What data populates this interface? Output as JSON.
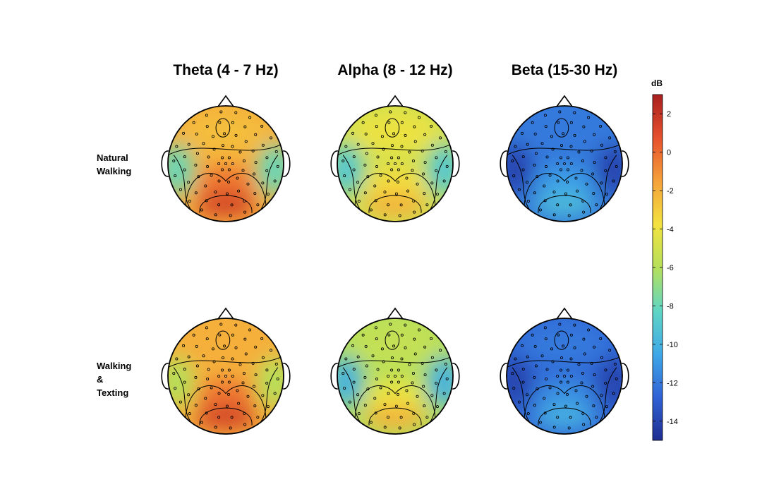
{
  "chart_data": {
    "type": "heatmap",
    "description_kind": "EEG scalp topography maps",
    "columns": [
      "Theta (4 - 7 Hz)",
      "Alpha (8 - 12 Hz)",
      "Beta (15-30 Hz)"
    ],
    "rows": [
      {
        "label_lines": [
          "Natural",
          "Walking"
        ]
      },
      {
        "label_lines": [
          "Walking",
          "&",
          "Texting"
        ]
      }
    ],
    "colorbar": {
      "unit": "dB",
      "range": [
        -15,
        3
      ],
      "ticks": [
        2,
        0,
        -2,
        -4,
        -6,
        -8,
        -10,
        -12,
        -14
      ],
      "colormap": "jet",
      "colors": [
        "#1f2d8f",
        "#2f62d6",
        "#3fa8e8",
        "#5fd6c4",
        "#b6e05a",
        "#f3e240",
        "#f5a13a",
        "#e6502c",
        "#a8201f"
      ]
    },
    "maps": [
      {
        "row": 0,
        "col": 0,
        "approx_mean_db": -2,
        "posterior_db": 1.5,
        "frontal_db": -2.5,
        "temporal_db": -8
      },
      {
        "row": 0,
        "col": 1,
        "approx_mean_db": -5,
        "posterior_db": -2,
        "frontal_db": -4,
        "temporal_db": -9
      },
      {
        "row": 0,
        "col": 2,
        "approx_mean_db": -12,
        "posterior_db": -9.5,
        "frontal_db": -12,
        "temporal_db": -14
      },
      {
        "row": 1,
        "col": 0,
        "approx_mean_db": -2,
        "posterior_db": 1.5,
        "frontal_db": -2,
        "temporal_db": -6
      },
      {
        "row": 1,
        "col": 1,
        "approx_mean_db": -6,
        "posterior_db": -2,
        "frontal_db": -5.5,
        "temporal_db": -10
      },
      {
        "row": 1,
        "col": 2,
        "approx_mean_db": -12.5,
        "posterior_db": -10,
        "frontal_db": -12,
        "temporal_db": -14
      }
    ]
  }
}
